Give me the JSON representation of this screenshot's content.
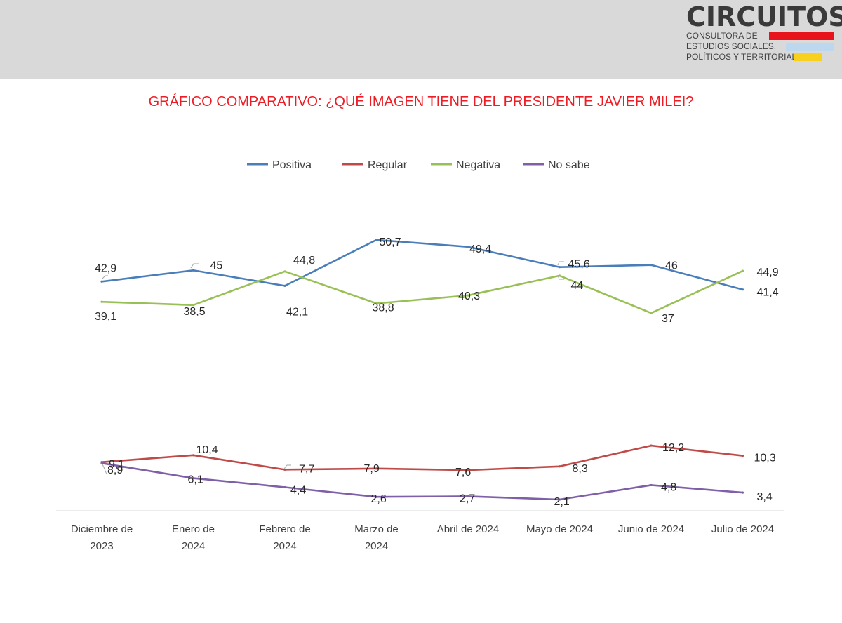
{
  "header": {
    "logo_title": "CIRCUITOS",
    "logo_lines": [
      "CONSULTORA DE",
      "ESTUDIOS SOCIALES,",
      "POLÍTICOS Y TERRITORIALES"
    ],
    "logo_colors": [
      "#e8141b",
      "#bcd7ee",
      "#f7d11e"
    ]
  },
  "chart_data": {
    "type": "line",
    "title": "GRÁFICO COMPARATIVO: ¿QUÉ IMAGEN TIENE DEL PRESIDENTE JAVIER MILEI?",
    "categories": [
      [
        "Diciembre de",
        "2023"
      ],
      [
        "Enero de",
        "2024"
      ],
      [
        "Febrero de",
        "2024"
      ],
      [
        "Marzo de",
        "2024"
      ],
      [
        "Abril de 2024"
      ],
      [
        "Mayo de 2024"
      ],
      [
        "Junio de 2024"
      ],
      [
        "Julio de 2024"
      ]
    ],
    "series": [
      {
        "name": "Positiva",
        "color": "#4a7ebb",
        "values": [
          42.9,
          45,
          42.1,
          50.7,
          49.4,
          45.6,
          46,
          41.4
        ],
        "labels": [
          "42,9",
          "45",
          "42,1",
          "50,7",
          "49,4",
          "45,6",
          "46",
          "41,4"
        ]
      },
      {
        "name": "Regular",
        "color": "#be4b48",
        "values": [
          9.1,
          10.4,
          7.7,
          7.9,
          7.6,
          8.3,
          12.2,
          10.3
        ],
        "labels": [
          "9,1",
          "10,4",
          "7,7",
          "7,9",
          "7,6",
          "8,3",
          "12,2",
          "10,3"
        ]
      },
      {
        "name": "Negativa",
        "color": "#98c054",
        "values": [
          39.1,
          38.5,
          44.8,
          38.8,
          40.3,
          44,
          37,
          44.9
        ],
        "labels": [
          "39,1",
          "38,5",
          "44,8",
          "38,8",
          "40,3",
          "44",
          "37",
          "44,9"
        ]
      },
      {
        "name": "No sabe",
        "color": "#7f5fa8",
        "values": [
          8.9,
          6.1,
          4.4,
          2.6,
          2.7,
          2.1,
          4.8,
          3.4
        ],
        "labels": [
          "8,9",
          "6,1",
          "4,4",
          "2,6",
          "2,7",
          "2,1",
          "4,8",
          "3,4"
        ]
      }
    ],
    "legend_position": "top-center",
    "xlabel": "",
    "ylabel": "",
    "grid": false
  }
}
